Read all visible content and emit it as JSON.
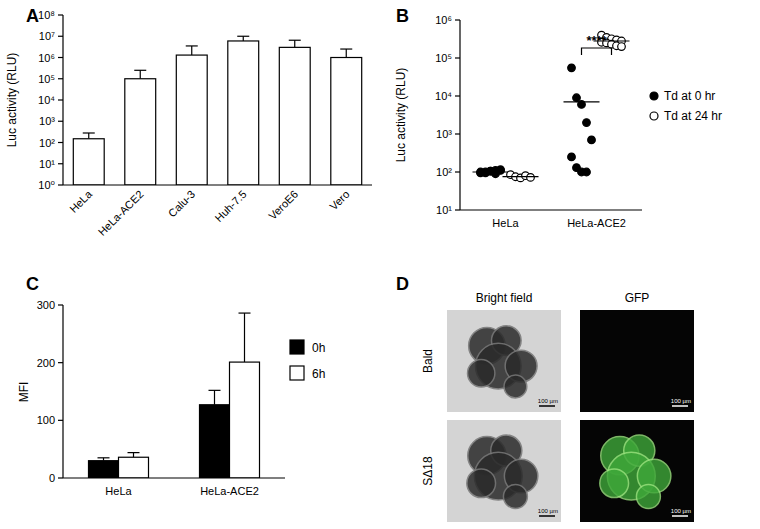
{
  "chart_data": [
    {
      "panel": "A",
      "type": "bar",
      "categories": [
        "HeLa",
        "HeLa-ACE2",
        "Calu-3",
        "Huh-7.5",
        "VeroE6",
        "Vero"
      ],
      "values": [
        150,
        100000,
        1300000,
        6000000,
        3000000,
        1000000
      ],
      "errors": [
        130,
        150000,
        2200000,
        4000000,
        3500000,
        1500000
      ],
      "color": "#ffffff",
      "y_label": "Luc activity (RLU)",
      "log": "y",
      "ylim": [
        1,
        100000000
      ],
      "yticks": [
        {
          "value": 1,
          "label": "10⁰"
        },
        {
          "value": 10,
          "label": "10¹"
        },
        {
          "value": 100,
          "label": "10²"
        },
        {
          "value": 1000,
          "label": "10³"
        },
        {
          "value": 10000,
          "label": "10⁴"
        },
        {
          "value": 100000,
          "label": "10⁵"
        },
        {
          "value": 1000000,
          "label": "10⁶"
        },
        {
          "value": 10000000,
          "label": "10⁷"
        },
        {
          "value": 100000000,
          "label": "10⁸"
        }
      ]
    },
    {
      "panel": "B",
      "type": "scatter",
      "categories": [
        "HeLa",
        "HeLa-ACE2"
      ],
      "y_label": "Luc activity (RLU)",
      "log": "y",
      "ylim": [
        10,
        1000000
      ],
      "yticks": [
        {
          "value": 10,
          "label": "10¹"
        },
        {
          "value": 100,
          "label": "10²"
        },
        {
          "value": 1000,
          "label": "10³"
        },
        {
          "value": 10000,
          "label": "10⁴"
        },
        {
          "value": 100000,
          "label": "10⁵"
        },
        {
          "value": 1000000,
          "label": "10⁶"
        }
      ],
      "legend": "right",
      "series": [
        {
          "name": "Td at 0 hr",
          "marker": "filled-circle",
          "color": "#000000",
          "x": [
            "HeLa",
            "HeLa",
            "HeLa",
            "HeLa",
            "HeLa",
            "HeLa",
            "HeLa",
            "HeLa",
            "HeLa",
            "HeLa",
            "HeLa-ACE2",
            "HeLa-ACE2",
            "HeLa-ACE2",
            "HeLa-ACE2",
            "HeLa-ACE2",
            "HeLa-ACE2",
            "HeLa-ACE2",
            "HeLa-ACE2",
            "HeLa-ACE2"
          ],
          "values": [
            95,
            100,
            105,
            110,
            115,
            100,
            95,
            105,
            90,
            110,
            55000,
            9000,
            6000,
            2000,
            700,
            250,
            130,
            100,
            100
          ],
          "means": [
            100,
            7000
          ]
        },
        {
          "name": "Td at 24 hr",
          "marker": "open-circle",
          "color": "#000000",
          "x": [
            "HeLa",
            "HeLa",
            "HeLa",
            "HeLa",
            "HeLa",
            "HeLa-ACE2",
            "HeLa-ACE2",
            "HeLa-ACE2",
            "HeLa-ACE2",
            "HeLa-ACE2",
            "HeLa-ACE2",
            "HeLa-ACE2",
            "HeLa-ACE2",
            "HeLa-ACE2",
            "HeLa-ACE2"
          ],
          "values": [
            85,
            75,
            70,
            80,
            72,
            400000,
            350000,
            320000,
            300000,
            280000,
            260000,
            250000,
            230000,
            210000,
            200000
          ],
          "means": [
            76,
            280000
          ]
        }
      ],
      "annotations": [
        {
          "text": "****",
          "category": "HeLa-ACE2"
        }
      ]
    },
    {
      "panel": "C",
      "type": "bar",
      "categories": [
        "HeLa",
        "HeLa-ACE2"
      ],
      "y_label": "MFI",
      "ylim": [
        0,
        300
      ],
      "yticks": [
        0,
        100,
        200,
        300
      ],
      "legend": "right",
      "series": [
        {
          "name": "0h",
          "color": "#000000",
          "values": [
            30,
            127
          ],
          "errors": [
            5,
            25
          ]
        },
        {
          "name": "6h",
          "color": "#ffffff",
          "values": [
            36,
            201
          ],
          "errors": [
            8,
            85
          ]
        }
      ]
    },
    {
      "panel": "D",
      "type": "image",
      "columns": [
        "Bright field",
        "GFP"
      ],
      "rows": [
        "Bald",
        "SΔ18"
      ],
      "scale_label": "100 µm"
    }
  ]
}
